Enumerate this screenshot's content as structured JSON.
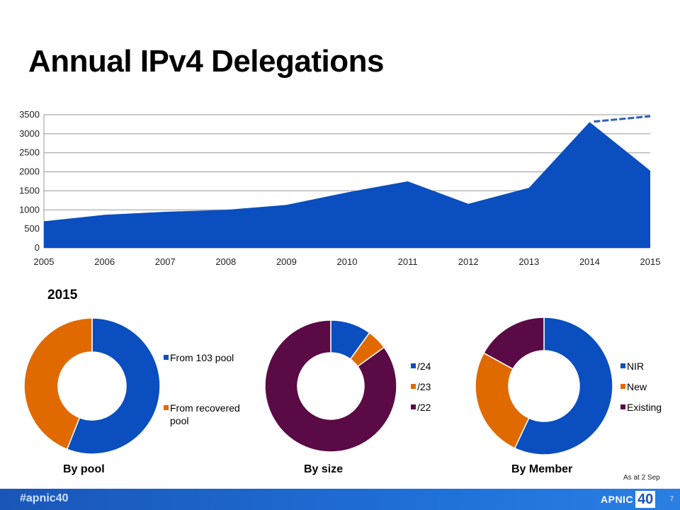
{
  "title": "Annual IPv4 Delegations",
  "chart_data": [
    {
      "type": "area",
      "title": "",
      "x": [
        "2005",
        "2006",
        "2007",
        "2008",
        "2009",
        "2010",
        "2011",
        "2012",
        "2013",
        "2014",
        "2015"
      ],
      "values": [
        700,
        870,
        950,
        1000,
        1130,
        1460,
        1750,
        1160,
        1580,
        3310,
        2030
      ],
      "projection": {
        "x": [
          "2014",
          "2015"
        ],
        "values": [
          3320,
          3460
        ],
        "style": "dashed"
      },
      "ylim": [
        0,
        3500
      ],
      "yticks": [
        0,
        500,
        1000,
        1500,
        2000,
        2500,
        3000,
        3500
      ],
      "grid": true,
      "colors": {
        "area": "#0a4ec0",
        "projection": "#2a5fb8"
      }
    },
    {
      "type": "pie",
      "variant": "donut",
      "caption": "By pool",
      "categories": [
        "From 103 pool",
        "From recovered pool"
      ],
      "values": [
        56,
        44
      ],
      "colors": [
        "#0a4ec0",
        "#e06a00"
      ],
      "legend": "right"
    },
    {
      "type": "pie",
      "variant": "donut",
      "caption": "By size",
      "categories": [
        "/24",
        "/23",
        "/22"
      ],
      "values": [
        10,
        5,
        85
      ],
      "colors": [
        "#0a4ec0",
        "#e06a00",
        "#5a0a45"
      ],
      "legend": "right"
    },
    {
      "type": "pie",
      "variant": "donut",
      "caption": "By Member",
      "categories": [
        "NIR",
        "New",
        "Existing"
      ],
      "values": [
        57,
        26,
        17
      ],
      "colors": [
        "#0a4ec0",
        "#e06a00",
        "#5a0a45"
      ],
      "legend": "right"
    }
  ],
  "subtitle_year": "2015",
  "footnote": "As at 2 Sep",
  "footer": {
    "hashtag": "#apnic40",
    "logo_text": "APNIC",
    "logo_number": "40",
    "page_number": "7"
  }
}
